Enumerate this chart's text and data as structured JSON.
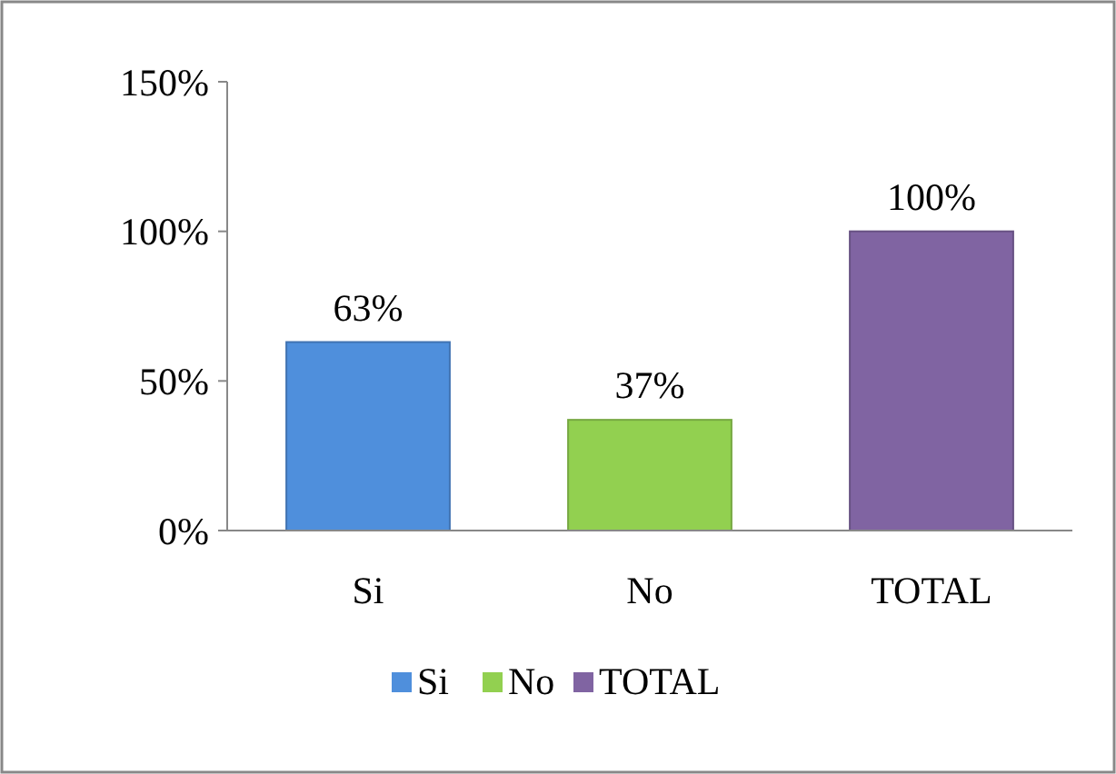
{
  "chart_data": {
    "type": "bar",
    "categories": [
      "Si",
      "No",
      "TOTAL"
    ],
    "stacked": true,
    "series": [
      {
        "name": "Si",
        "color": "#4f8fdc",
        "values": [
          63,
          null,
          null
        ],
        "value_labels": [
          "63%",
          null,
          null
        ]
      },
      {
        "name": "No",
        "color": "#92d050",
        "values": [
          null,
          37,
          null
        ],
        "value_labels": [
          null,
          "37%",
          null
        ]
      },
      {
        "name": "TOTAL",
        "color": "#8064a2",
        "values": [
          null,
          null,
          100
        ],
        "value_labels": [
          null,
          null,
          "100%"
        ]
      }
    ],
    "ylim": [
      0,
      150
    ],
    "yticks": [
      {
        "value": 0,
        "label": "0%"
      },
      {
        "value": 50,
        "label": "50%"
      },
      {
        "value": 100,
        "label": "100%"
      },
      {
        "value": 150,
        "label": "150%"
      }
    ],
    "legend": "bottom"
  }
}
